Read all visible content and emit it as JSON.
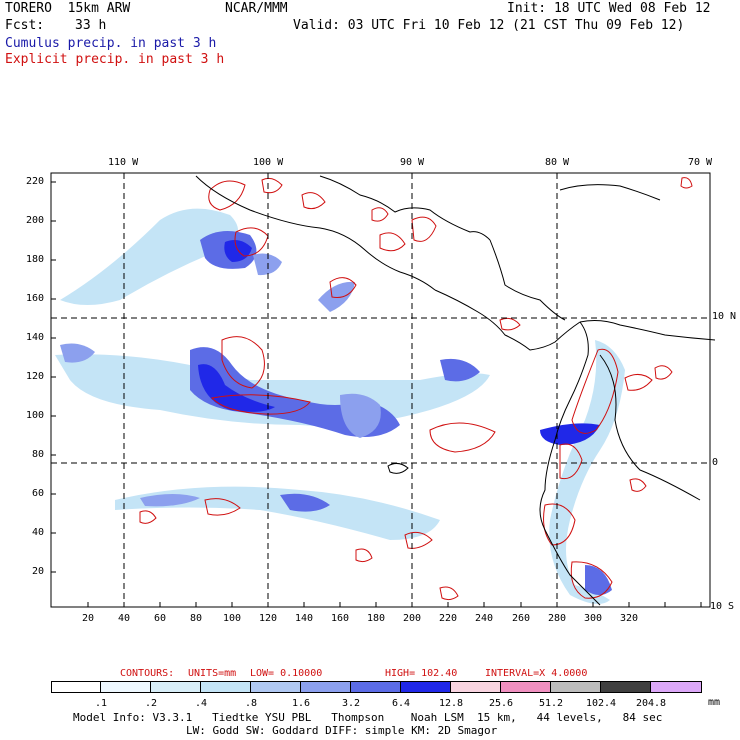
{
  "header": {
    "model": "TORERO  15km ARW",
    "center": "NCAR/MMM",
    "init": "Init: 18 UTC Wed 08 Feb 12",
    "fcst_label": "Fcst:",
    "fcst_value": "33 h",
    "valid": "Valid: 03 UTC Fri 10 Feb 12 (21 CST Thu 09 Feb 12)",
    "line_cumulus": "Cumulus precip. in past 3 h",
    "line_explicit": "Explicit precip. in past 3 h"
  },
  "axes": {
    "lon_labels": [
      "110 W",
      "100 W",
      "90 W",
      "80 W",
      "70 W"
    ],
    "lat_labels": [
      "10 N",
      "0",
      "10 S"
    ],
    "y_ticks": [
      "220",
      "200",
      "180",
      "160",
      "140",
      "120",
      "100",
      "80",
      "60",
      "40",
      "20"
    ],
    "x_ticks": [
      "20",
      "40",
      "60",
      "80",
      "100",
      "120",
      "140",
      "160",
      "180",
      "200",
      "220",
      "240",
      "260",
      "280",
      "300",
      "320"
    ]
  },
  "contours": {
    "text_label": "CONTOURS:",
    "units_label": "UNITS=mm",
    "low_label": "LOW= 0.10000",
    "high_label": "HIGH= 102.40",
    "interval_label": "INTERVAL=X 4.0000"
  },
  "legend": {
    "unit": "mm",
    "labels": [
      ".1",
      ".2",
      ".4",
      ".8",
      "1.6",
      "3.2",
      "6.4",
      "12.8",
      "25.6",
      "51.2",
      "102.4",
      "204.8"
    ],
    "colors": [
      "#ffffff",
      "#eef8ff",
      "#d8eef8",
      "#c4e4f6",
      "#b0c8f2",
      "#8ca0ee",
      "#5c6ce6",
      "#2028e8",
      "#f8d4e0",
      "#f090c0",
      "#bcbcbc",
      "#404040",
      "#dca8f8"
    ]
  },
  "footer": {
    "line1": "Model Info: V3.3.1   Tiedtke YSU PBL   Thompson    Noah LSM  15 km,   44 levels,   84 sec",
    "line2": "LW: Godd SW: Goddard DIFF: simple KM: 2D Smagor"
  }
}
